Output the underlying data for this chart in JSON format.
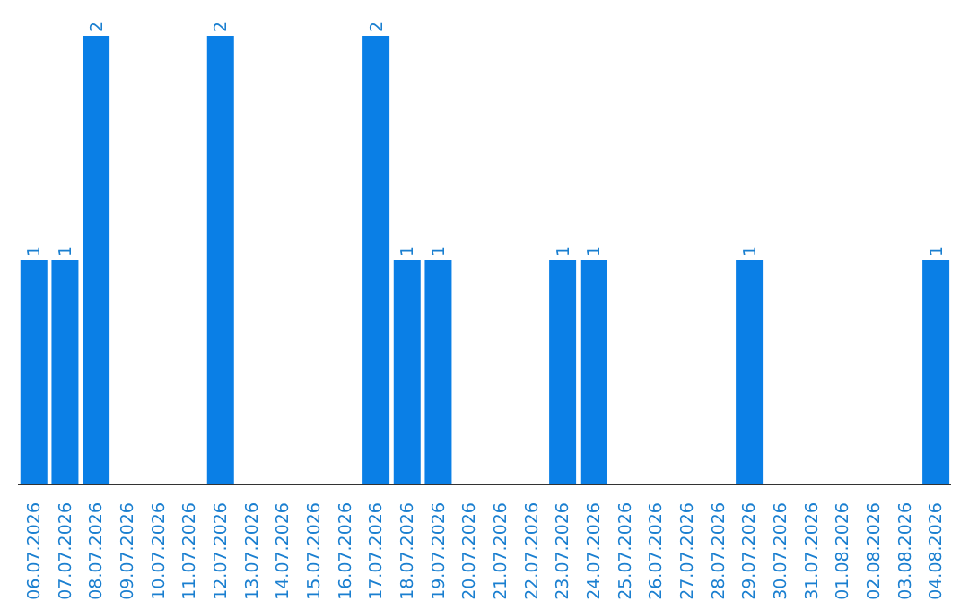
{
  "chart_data": {
    "type": "bar",
    "categories": [
      "06.07.2026",
      "07.07.2026",
      "08.07.2026",
      "09.07.2026",
      "10.07.2026",
      "11.07.2026",
      "12.07.2026",
      "13.07.2026",
      "14.07.2026",
      "15.07.2026",
      "16.07.2026",
      "17.07.2026",
      "18.07.2026",
      "19.07.2026",
      "20.07.2026",
      "21.07.2026",
      "22.07.2026",
      "23.07.2026",
      "24.07.2026",
      "25.07.2026",
      "26.07.2026",
      "27.07.2026",
      "28.07.2026",
      "29.07.2026",
      "30.07.2026",
      "31.07.2026",
      "01.08.2026",
      "02.08.2026",
      "03.08.2026",
      "04.08.2026"
    ],
    "values": [
      1,
      1,
      2,
      0,
      0,
      0,
      2,
      0,
      0,
      0,
      0,
      2,
      1,
      1,
      0,
      0,
      0,
      1,
      1,
      0,
      0,
      0,
      0,
      1,
      0,
      0,
      0,
      0,
      0,
      1
    ],
    "value_labels": [
      "1",
      "1",
      "2",
      null,
      null,
      null,
      "2",
      null,
      null,
      null,
      null,
      "2",
      "1",
      "1",
      null,
      null,
      null,
      "1",
      "1",
      null,
      null,
      null,
      null,
      "1",
      null,
      null,
      null,
      null,
      null,
      "1"
    ],
    "color": "#0a7fe6",
    "tick_labels": "x",
    "grid": false,
    "legend": false
  }
}
